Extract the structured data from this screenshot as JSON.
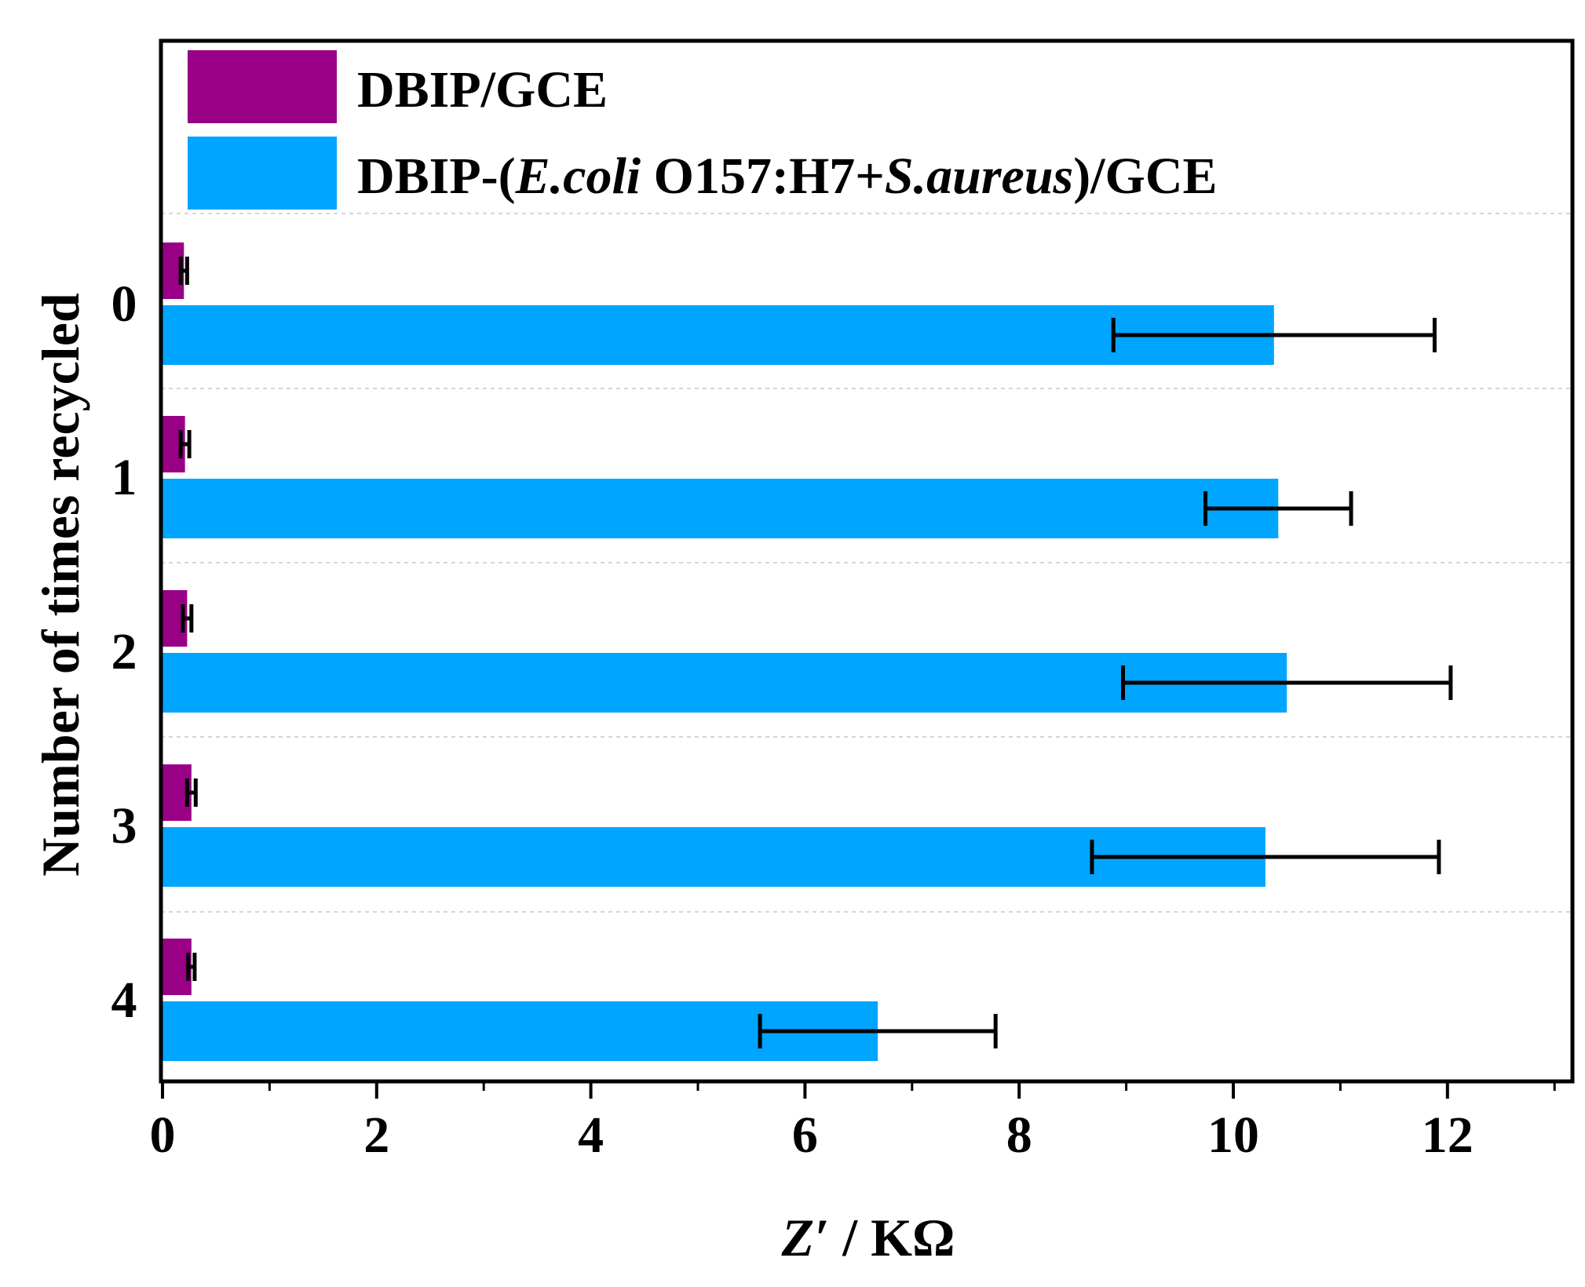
{
  "chart_data": {
    "type": "bar",
    "orientation": "horizontal",
    "title": "",
    "xlabel": {
      "symbol": "Z′",
      "unit": " / KΩ"
    },
    "ylabel": "Number of times recycled",
    "categories": [
      "0",
      "1",
      "2",
      "3",
      "4"
    ],
    "xlim": [
      0,
      13.2
    ],
    "xticks": [
      "0",
      "2",
      "4",
      "6",
      "8",
      "10",
      "12"
    ],
    "grid": "horizontal dotted separators",
    "legend_position": "top-left",
    "series": [
      {
        "name": "DBIP/GCE",
        "color": "#990085",
        "values": [
          0.2,
          0.21,
          0.23,
          0.27,
          0.27
        ],
        "errors": [
          0.03,
          0.04,
          0.04,
          0.04,
          0.03
        ]
      },
      {
        "name": "DBIP-(E.coli O157:H7+S.aureus)/GCE",
        "name_parts": {
          "p1": "DBIP-(",
          "p2": "E.coli",
          "p3": " O157:H7+",
          "p4": "S.aureus",
          "p5": ")/GCE"
        },
        "color": "#00A5FF",
        "values": [
          10.38,
          10.42,
          10.5,
          10.3,
          6.68
        ],
        "errors": [
          1.5,
          0.68,
          1.53,
          1.62,
          1.1
        ]
      }
    ]
  }
}
